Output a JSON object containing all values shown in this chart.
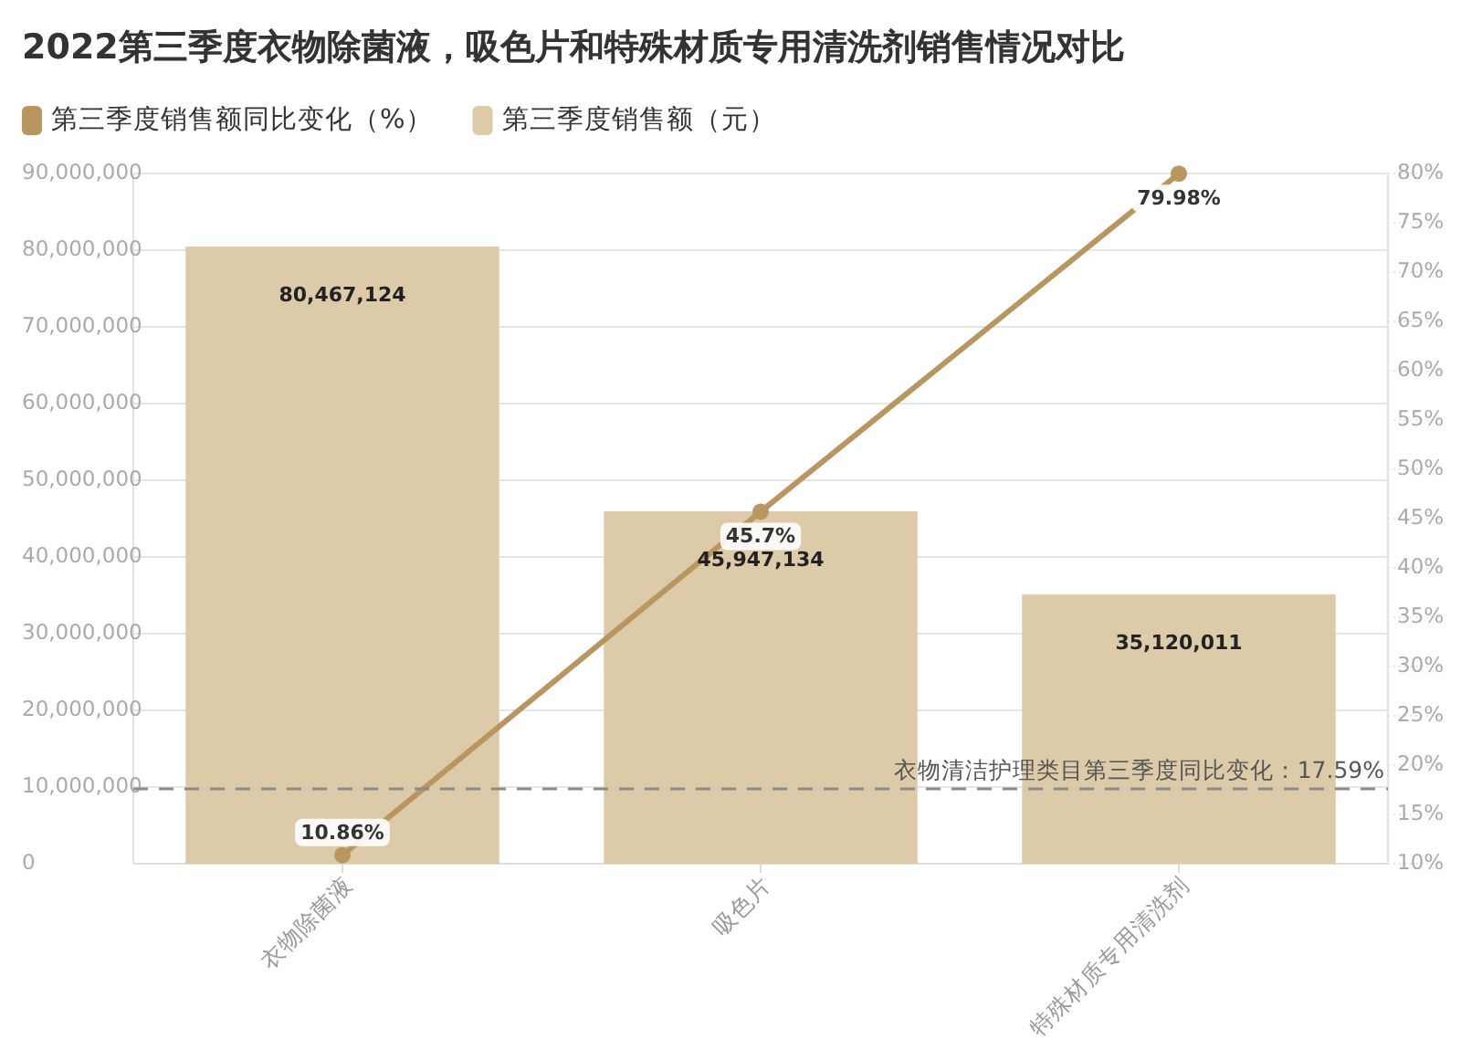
{
  "chart_data": {
    "type": "bar",
    "title": "2022第三季度衣物除菌液，吸色片和特殊材质专用清洗剂销售情况对比",
    "categories": [
      "衣物除菌液",
      "吸色片",
      "特殊材质专用清洗剂"
    ],
    "series": [
      {
        "name": "第三季度销售额同比变化（%）",
        "type": "line",
        "axis": "y2",
        "color": "#b99560",
        "values": [
          10.86,
          45.7,
          79.98
        ],
        "value_labels": [
          "10.86%",
          "45.7%",
          "79.98%"
        ]
      },
      {
        "name": "第三季度销售额（元）",
        "type": "bar",
        "color": "#ddcaa8",
        "values": [
          80467124,
          45947134,
          35120011
        ],
        "value_labels": [
          "80,467,124",
          "45,947,134",
          "35,120,011"
        ]
      }
    ],
    "ylim": [
      0,
      90000000
    ],
    "yticks": [
      0,
      {
        "value": 10000000,
        "label": "10,000,000"
      },
      {
        "value": 20000000,
        "label": "20,000,000"
      },
      {
        "value": 30000000,
        "label": "30,000,000"
      },
      {
        "value": 40000000,
        "label": "40,000,000"
      },
      {
        "value": 50000000,
        "label": "50,000,000"
      },
      {
        "value": 60000000,
        "label": "60,000,000"
      },
      {
        "value": 70000000,
        "label": "70,000,000"
      },
      {
        "value": 80000000,
        "label": "80,000,000"
      },
      {
        "value": 90000000,
        "label": "90,000,000"
      }
    ],
    "y2lim": [
      10,
      80
    ],
    "y2ticks": [
      {
        "value": 10,
        "label": "10%"
      },
      {
        "value": 15,
        "label": "15%"
      },
      {
        "value": 20,
        "label": "20%"
      },
      {
        "value": 25,
        "label": "25%"
      },
      {
        "value": 30,
        "label": "30%"
      },
      {
        "value": 35,
        "label": "35%"
      },
      {
        "value": 40,
        "label": "40%"
      },
      {
        "value": 45,
        "label": "45%"
      },
      {
        "value": 50,
        "label": "50%"
      },
      {
        "value": 55,
        "label": "55%"
      },
      {
        "value": 60,
        "label": "60%"
      },
      {
        "value": 65,
        "label": "65%"
      },
      {
        "value": 70,
        "label": "70%"
      },
      {
        "value": 75,
        "label": "75%"
      },
      {
        "value": 80,
        "label": "80%"
      }
    ],
    "ref_lines": [
      {
        "axis": "y2",
        "value": 17.59,
        "label": "衣物清洁护理类目第三季度同比变化：17.59%",
        "color": "#8a8a8a",
        "line_style": "dashed"
      }
    ],
    "grid": "y",
    "legend": "top left",
    "marker": "circle"
  }
}
